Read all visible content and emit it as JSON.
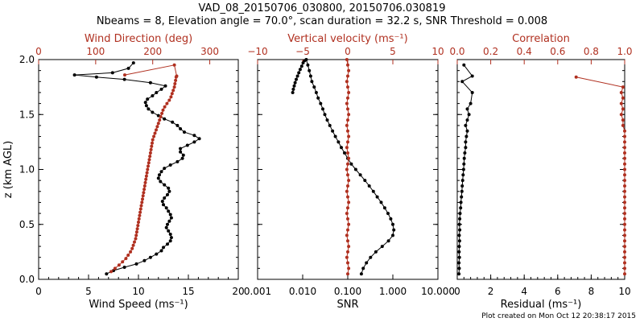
{
  "title": {
    "line1": "VAD_08_20150706_030800, 20150706.030819",
    "line2": "Nbeams = 8, Elevation angle = 70.0°, scan duration = 32.2 s, SNR Threshold = 0.008"
  },
  "footer": "Plot created on Mon Oct 12 20:38:17 2015",
  "colors": {
    "primary": "#000000",
    "secondary": "#b03020"
  },
  "chart_data": [
    {
      "type": "line",
      "xlabel": "Wind Speed (ms⁻¹)",
      "ylabel": "z (km AGL)",
      "top_xlabel": "Wind Direction (deg)",
      "xlim": [
        0,
        20
      ],
      "top_xlim": [
        0,
        350
      ],
      "ylim": [
        0,
        2.0
      ],
      "x_ticks": [
        "0",
        "5",
        "10",
        "15",
        "20"
      ],
      "top_x_ticks": [
        "0",
        "100",
        "200",
        "300"
      ],
      "y_ticks": [
        "0.0",
        "0.5",
        "1.0",
        "1.5",
        "2.0"
      ],
      "grid": false,
      "series": [
        {
          "axis": "bottom",
          "color": "#000000",
          "marker": "dot",
          "x": [
            6.8,
            7.5,
            8.6,
            9.8,
            10.6,
            11.2,
            11.8,
            12.3,
            12.5,
            12.9,
            13.2,
            13.3,
            13.2,
            13.0,
            12.8,
            12.9,
            13.1,
            13.3,
            13.2,
            13.0,
            12.8,
            12.5,
            12.4,
            12.6,
            12.9,
            13.1,
            13.0,
            12.6,
            12.2,
            12.0,
            12.1,
            12.3,
            12.6,
            13.2,
            13.9,
            14.4,
            14.5,
            14.2,
            14.2,
            14.9,
            15.6,
            16.1,
            15.6,
            14.6,
            14.2,
            13.9,
            13.4,
            12.6,
            12.0,
            11.4,
            11.0,
            10.8,
            10.7,
            10.9,
            11.4,
            11.8,
            12.3,
            12.7,
            11.2,
            8.6,
            5.8,
            3.6,
            7.4,
            9.0,
            9.5
          ],
          "y": [
            0.05,
            0.08,
            0.11,
            0.14,
            0.17,
            0.2,
            0.23,
            0.26,
            0.29,
            0.32,
            0.35,
            0.38,
            0.41,
            0.44,
            0.47,
            0.5,
            0.53,
            0.56,
            0.59,
            0.62,
            0.65,
            0.68,
            0.71,
            0.74,
            0.77,
            0.8,
            0.83,
            0.86,
            0.89,
            0.92,
            0.95,
            0.98,
            1.01,
            1.04,
            1.07,
            1.1,
            1.13,
            1.16,
            1.19,
            1.22,
            1.25,
            1.28,
            1.31,
            1.34,
            1.37,
            1.4,
            1.43,
            1.46,
            1.49,
            1.52,
            1.55,
            1.58,
            1.61,
            1.64,
            1.67,
            1.7,
            1.73,
            1.76,
            1.79,
            1.82,
            1.84,
            1.86,
            1.88,
            1.92,
            1.97
          ]
        },
        {
          "axis": "top",
          "color": "#b03020",
          "marker": "dot",
          "x": [
            127,
            134,
            141,
            147,
            153,
            157,
            161,
            164,
            166,
            168,
            170,
            171,
            172,
            173,
            174,
            175,
            176,
            177,
            178,
            179,
            180,
            181,
            182,
            183,
            184,
            185,
            186,
            187,
            188,
            189,
            190,
            191,
            192,
            193,
            194,
            195,
            196,
            197,
            198,
            199,
            200,
            202,
            204,
            206,
            208,
            210,
            212,
            214,
            216,
            218,
            221,
            225,
            229,
            232,
            234,
            236,
            238,
            239,
            240,
            241,
            242,
            238,
            151
          ],
          "y": [
            0.07,
            0.1,
            0.13,
            0.16,
            0.19,
            0.22,
            0.25,
            0.28,
            0.31,
            0.34,
            0.37,
            0.4,
            0.43,
            0.46,
            0.49,
            0.52,
            0.55,
            0.58,
            0.61,
            0.64,
            0.67,
            0.7,
            0.73,
            0.76,
            0.79,
            0.82,
            0.85,
            0.88,
            0.91,
            0.94,
            0.97,
            1.0,
            1.03,
            1.06,
            1.09,
            1.12,
            1.15,
            1.18,
            1.21,
            1.24,
            1.27,
            1.3,
            1.33,
            1.36,
            1.39,
            1.42,
            1.45,
            1.48,
            1.51,
            1.54,
            1.57,
            1.6,
            1.63,
            1.66,
            1.69,
            1.72,
            1.75,
            1.78,
            1.81,
            1.84,
            1.85,
            1.95,
            1.86
          ]
        }
      ]
    },
    {
      "type": "line",
      "xlabel": "SNR",
      "top_xlabel": "Vertical velocity (ms⁻¹)",
      "xscale": "log",
      "xlim": [
        0.001,
        10
      ],
      "top_xlim": [
        -10,
        10
      ],
      "ylim": [
        0,
        2.0
      ],
      "x_ticks": [
        "0.001",
        "0.010",
        "0.100",
        "1.000",
        "10.000"
      ],
      "top_x_ticks": [
        "−10",
        "−5",
        "0",
        "5",
        "10"
      ],
      "grid": false,
      "series": [
        {
          "axis": "bottom",
          "color": "#000000",
          "marker": "dot",
          "x": [
            0.2,
            0.22,
            0.26,
            0.32,
            0.42,
            0.58,
            0.8,
            1.0,
            1.05,
            1.0,
            0.9,
            0.78,
            0.66,
            0.55,
            0.45,
            0.37,
            0.3,
            0.24,
            0.19,
            0.15,
            0.12,
            0.1,
            0.085,
            0.072,
            0.062,
            0.053,
            0.046,
            0.04,
            0.035,
            0.031,
            0.028,
            0.025,
            0.022,
            0.02,
            0.018,
            0.016,
            0.015,
            0.014,
            0.013,
            0.012,
            0.011,
            0.0102,
            0.0095,
            0.0088,
            0.0082,
            0.0077,
            0.0072,
            0.0068,
            0.0065,
            0.0062,
            0.006
          ],
          "y": [
            0.05,
            0.1,
            0.15,
            0.2,
            0.25,
            0.3,
            0.35,
            0.4,
            0.45,
            0.5,
            0.55,
            0.6,
            0.65,
            0.7,
            0.75,
            0.8,
            0.85,
            0.9,
            0.95,
            1.0,
            1.05,
            1.1,
            1.15,
            1.2,
            1.25,
            1.3,
            1.35,
            1.4,
            1.45,
            1.5,
            1.55,
            1.6,
            1.65,
            1.7,
            1.75,
            1.8,
            1.85,
            1.9,
            1.95,
            2.0,
            1.99,
            1.97,
            1.94,
            1.91,
            1.88,
            1.85,
            1.82,
            1.79,
            1.76,
            1.73,
            1.7
          ]
        },
        {
          "axis": "top",
          "color": "#b03020",
          "marker": "dot",
          "x": [
            0.0,
            0.1,
            0.0,
            -0.1,
            0.0,
            0.1,
            0.0,
            -0.1,
            0.0,
            0.1,
            0.0,
            -0.1,
            0.0,
            0.1,
            0.0,
            -0.1,
            0.0,
            0.1,
            0.0,
            -0.1,
            0.0,
            0.1,
            0.0,
            -0.1,
            0.0,
            0.1,
            0.0,
            -0.1,
            0.0,
            0.1,
            0.0,
            -0.1,
            0.0,
            0.1,
            0.0,
            -0.1,
            0.0,
            0.1,
            0.0,
            -0.1
          ],
          "y": [
            0.05,
            0.1,
            0.15,
            0.2,
            0.25,
            0.3,
            0.35,
            0.4,
            0.45,
            0.5,
            0.55,
            0.6,
            0.65,
            0.7,
            0.75,
            0.8,
            0.85,
            0.9,
            0.95,
            1.0,
            1.05,
            1.1,
            1.15,
            1.2,
            1.25,
            1.3,
            1.35,
            1.4,
            1.45,
            1.5,
            1.55,
            1.6,
            1.65,
            1.7,
            1.75,
            1.8,
            1.85,
            1.9,
            1.95,
            2.0
          ]
        }
      ]
    },
    {
      "type": "line",
      "xlabel": "Residual (ms⁻¹)",
      "top_xlabel": "Correlation",
      "xlim": [
        0,
        10
      ],
      "top_xlim": [
        0,
        1.0
      ],
      "ylim": [
        0,
        2.0
      ],
      "x_ticks": [
        "0",
        "2",
        "4",
        "6",
        "8",
        "10"
      ],
      "top_x_ticks": [
        "0.0",
        "0.2",
        "0.4",
        "0.6",
        "0.8",
        "1.0"
      ],
      "grid": false,
      "series": [
        {
          "axis": "bottom",
          "color": "#000000",
          "marker": "dot",
          "x": [
            0.1,
            0.12,
            0.1,
            0.13,
            0.11,
            0.12,
            0.14,
            0.12,
            0.15,
            0.13,
            0.15,
            0.17,
            0.2,
            0.22,
            0.25,
            0.28,
            0.3,
            0.32,
            0.35,
            0.38,
            0.4,
            0.42,
            0.45,
            0.5,
            0.5,
            0.55,
            0.6,
            0.5,
            0.6,
            0.7,
            0.6,
            0.8,
            0.9,
            0.3,
            0.9,
            0.4
          ],
          "y": [
            0.05,
            0.1,
            0.15,
            0.2,
            0.25,
            0.3,
            0.35,
            0.4,
            0.45,
            0.5,
            0.55,
            0.6,
            0.65,
            0.7,
            0.75,
            0.8,
            0.85,
            0.9,
            0.95,
            1.0,
            1.05,
            1.1,
            1.15,
            1.2,
            1.25,
            1.3,
            1.35,
            1.4,
            1.45,
            1.5,
            1.55,
            1.6,
            1.7,
            1.8,
            1.85,
            1.95
          ]
        },
        {
          "axis": "top",
          "color": "#b03020",
          "marker": "dot",
          "x": [
            1.0,
            1.0,
            1.0,
            1.0,
            1.0,
            1.0,
            1.0,
            1.0,
            1.0,
            1.0,
            1.0,
            1.0,
            1.0,
            1.0,
            1.0,
            1.0,
            1.0,
            1.0,
            1.0,
            1.0,
            1.0,
            1.0,
            1.0,
            1.0,
            1.0,
            1.0,
            1.0,
            0.99,
            0.99,
            0.98,
            0.99,
            0.98,
            0.99,
            0.98,
            0.99,
            0.71
          ],
          "y": [
            0.05,
            0.1,
            0.15,
            0.2,
            0.25,
            0.3,
            0.35,
            0.4,
            0.45,
            0.5,
            0.55,
            0.6,
            0.65,
            0.7,
            0.75,
            0.8,
            0.85,
            0.9,
            0.95,
            1.0,
            1.05,
            1.1,
            1.15,
            1.2,
            1.25,
            1.3,
            1.35,
            1.4,
            1.45,
            1.5,
            1.55,
            1.6,
            1.65,
            1.7,
            1.75,
            1.84
          ]
        }
      ]
    }
  ]
}
